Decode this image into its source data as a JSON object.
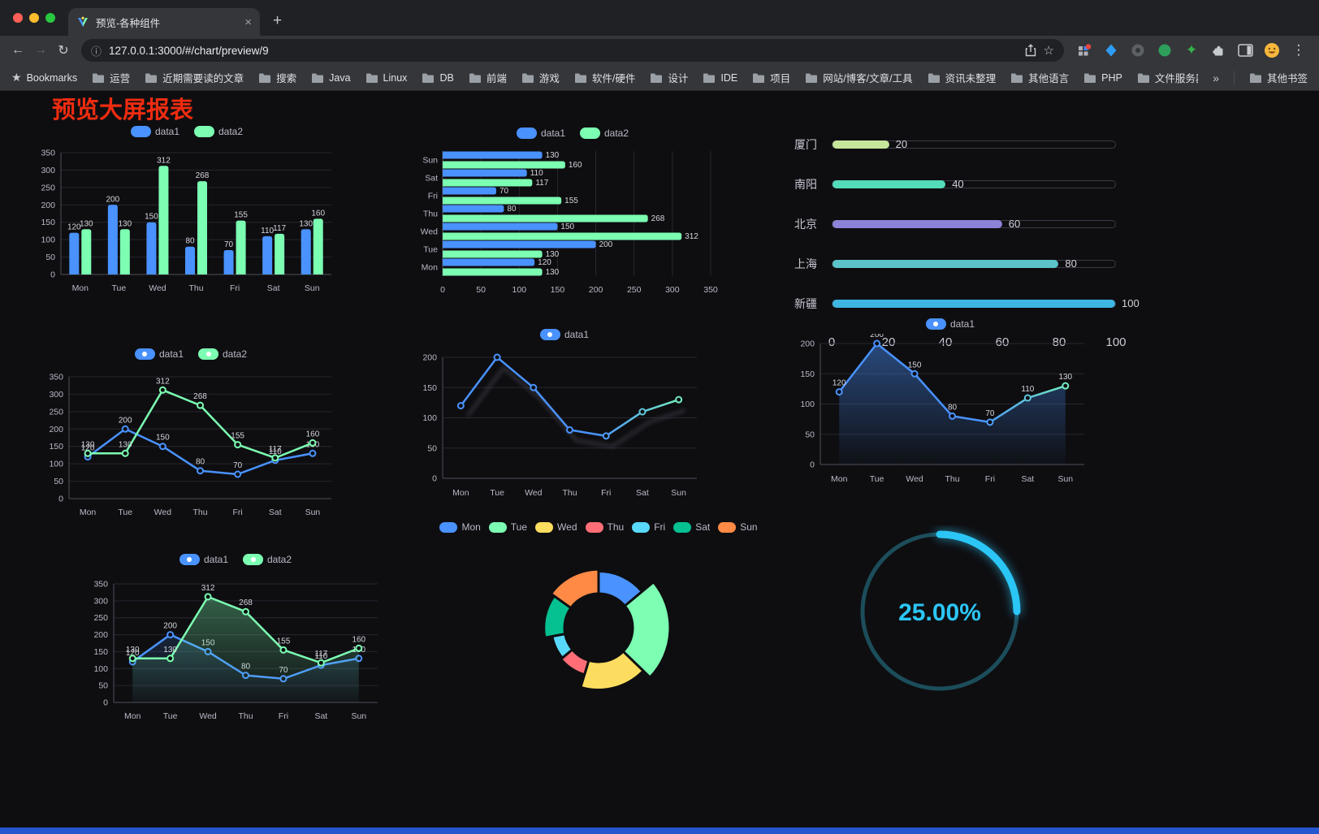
{
  "window": {
    "tab": {
      "title": "预览-各种组件"
    },
    "url": "127.0.0.1:3000/#/chart/preview/9"
  },
  "icons": {
    "back": "←",
    "forward": "→",
    "reload": "↻",
    "info": "ⓘ",
    "bookmark_star": "☆",
    "bookmarks_label_star": "★",
    "new_tab": "+",
    "tab_close": "×",
    "menu": "⋮",
    "overflow": "»",
    "ext_star": "✦"
  },
  "bookmarks_bar": {
    "label": "Bookmarks",
    "folders": [
      "运营",
      "近期需要读的文章",
      "搜索",
      "Java",
      "Linux",
      "DB",
      "前端",
      "游戏",
      "软件/硬件",
      "设计",
      "IDE",
      "项目",
      "网站/博客/文章/工具",
      "资讯未整理",
      "其他语言",
      "PHP",
      "文件服务器"
    ],
    "other_bookmarks": "其他书签"
  },
  "page": {
    "title": "预览大屏报表",
    "colors": {
      "title": "#ee2c10",
      "background": "#0e0e11",
      "bottom_bar": "#2457cf"
    }
  },
  "chart_data": [
    {
      "type": "bar",
      "orientation": "vertical",
      "categories": [
        "Mon",
        "Tue",
        "Wed",
        "Thu",
        "Fri",
        "Sat",
        "Sun"
      ],
      "series": [
        {
          "name": "data1",
          "color": "#4992ff",
          "values": [
            120,
            200,
            150,
            80,
            70,
            110,
            130
          ]
        },
        {
          "name": "data2",
          "color": "#7cffb2",
          "values": [
            130,
            130,
            312,
            268,
            155,
            117,
            160
          ]
        }
      ],
      "ylim": [
        0,
        350
      ],
      "ytick_step": 50,
      "show_labels": true,
      "legend": [
        {
          "label": "data1",
          "color": "#4992ff"
        },
        {
          "label": "data2",
          "color": "#7cffb2"
        }
      ]
    },
    {
      "type": "bar",
      "orientation": "horizontal",
      "categories": [
        "Mon",
        "Tue",
        "Wed",
        "Thu",
        "Fri",
        "Sat",
        "Sun"
      ],
      "series": [
        {
          "name": "data1",
          "color": "#4992ff",
          "values": [
            120,
            200,
            150,
            80,
            70,
            110,
            130
          ]
        },
        {
          "name": "data2",
          "color": "#7cffb2",
          "values": [
            130,
            130,
            312,
            268,
            155,
            117,
            160
          ]
        }
      ],
      "xlim": [
        0,
        350
      ],
      "xtick_step": 50,
      "show_labels": true,
      "legend": [
        {
          "label": "data1",
          "color": "#4992ff"
        },
        {
          "label": "data2",
          "color": "#7cffb2"
        }
      ]
    },
    {
      "type": "progress",
      "max": 100,
      "xticks": [
        0,
        20,
        40,
        60,
        80,
        100
      ],
      "items": [
        {
          "label": "厦门",
          "value": 20,
          "color": "#c6e69a"
        },
        {
          "label": "南阳",
          "value": 40,
          "color": "#53dcb8"
        },
        {
          "label": "北京",
          "value": 60,
          "color": "#8a83d8"
        },
        {
          "label": "上海",
          "value": 80,
          "color": "#5bc4c9"
        },
        {
          "label": "新疆",
          "value": 100,
          "color": "#3fb7e3"
        }
      ]
    },
    {
      "type": "line",
      "categories": [
        "Mon",
        "Tue",
        "Wed",
        "Thu",
        "Fri",
        "Sat",
        "Sun"
      ],
      "series": [
        {
          "name": "data1",
          "color": "#4992ff",
          "values": [
            120,
            200,
            150,
            80,
            70,
            110,
            130
          ]
        },
        {
          "name": "data2",
          "color": "#7cffb2",
          "values": [
            130,
            130,
            312,
            268,
            155,
            117,
            160
          ]
        }
      ],
      "ylim": [
        0,
        350
      ],
      "ytick_step": 50,
      "show_labels": true,
      "legend": [
        {
          "label": "data1",
          "color": "#4992ff",
          "dot": true
        },
        {
          "label": "data2",
          "color": "#7cffb2",
          "dot": true
        }
      ]
    },
    {
      "type": "line",
      "shadow": true,
      "categories": [
        "Mon",
        "Tue",
        "Wed",
        "Thu",
        "Fri",
        "Sat",
        "Sun"
      ],
      "series": [
        {
          "name": "data1",
          "gradient": [
            "#4992ff",
            "#7cffb2"
          ],
          "color": "#4992ff",
          "values": [
            120,
            200,
            150,
            80,
            70,
            110,
            130
          ]
        }
      ],
      "ylim": [
        0,
        200
      ],
      "ytick_step": 50,
      "show_labels": false,
      "legend": [
        {
          "label": "data1",
          "color": "#4992ff",
          "dot": true
        }
      ]
    },
    {
      "type": "line",
      "categories": [
        "Mon",
        "Tue",
        "Wed",
        "Thu",
        "Fri",
        "Sat",
        "Sun"
      ],
      "series": [
        {
          "name": "data1",
          "gradient": [
            "#4992ff",
            "#7cffb2"
          ],
          "color": "#4992ff",
          "fill": [
            "rgba(73,146,255,0.45)",
            "rgba(73,146,255,0.02)"
          ],
          "values": [
            120,
            200,
            150,
            80,
            70,
            110,
            130
          ]
        }
      ],
      "ylim": [
        0,
        200
      ],
      "ytick_step": 50,
      "show_labels": true,
      "legend": [
        {
          "label": "data1",
          "color": "#4992ff",
          "dot": true
        }
      ]
    },
    {
      "type": "line",
      "categories": [
        "Mon",
        "Tue",
        "Wed",
        "Thu",
        "Fri",
        "Sat",
        "Sun"
      ],
      "series": [
        {
          "name": "data1",
          "color": "#4992ff",
          "fill": [
            "rgba(73,146,255,0.28)",
            "rgba(73,146,255,0.02)"
          ],
          "values": [
            120,
            200,
            150,
            80,
            70,
            110,
            130
          ]
        },
        {
          "name": "data2",
          "color": "#7cffb2",
          "fill": [
            "rgba(124,255,178,0.38)",
            "rgba(124,255,178,0.02)"
          ],
          "values": [
            130,
            130,
            312,
            268,
            155,
            117,
            160
          ]
        }
      ],
      "ylim": [
        0,
        350
      ],
      "ytick_step": 50,
      "show_labels": true,
      "legend": [
        {
          "label": "data1",
          "color": "#4992ff",
          "dot": true
        },
        {
          "label": "data2",
          "color": "#7cffb2",
          "dot": true
        }
      ]
    },
    {
      "type": "pie",
      "rose": true,
      "categories": [
        "Mon",
        "Tue",
        "Wed",
        "Thu",
        "Fri",
        "Sat",
        "Sun"
      ],
      "values": [
        120,
        200,
        150,
        80,
        70,
        110,
        130
      ],
      "colors": [
        "#4992ff",
        "#7cffb2",
        "#fddd60",
        "#ff6e76",
        "#58d9f9",
        "#05c091",
        "#ff8a45"
      ],
      "legend": [
        {
          "label": "Mon",
          "color": "#4992ff"
        },
        {
          "label": "Tue",
          "color": "#7cffb2"
        },
        {
          "label": "Wed",
          "color": "#fddd60"
        },
        {
          "label": "Thu",
          "color": "#ff6e76"
        },
        {
          "label": "Fri",
          "color": "#58d9f9"
        },
        {
          "label": "Sat",
          "color": "#05c091"
        },
        {
          "label": "Sun",
          "color": "#ff8a45"
        }
      ]
    },
    {
      "type": "gauge",
      "value": 25,
      "label": "25.00%",
      "color": "#2bc6f6",
      "track_color": "#1c4d5a"
    }
  ]
}
